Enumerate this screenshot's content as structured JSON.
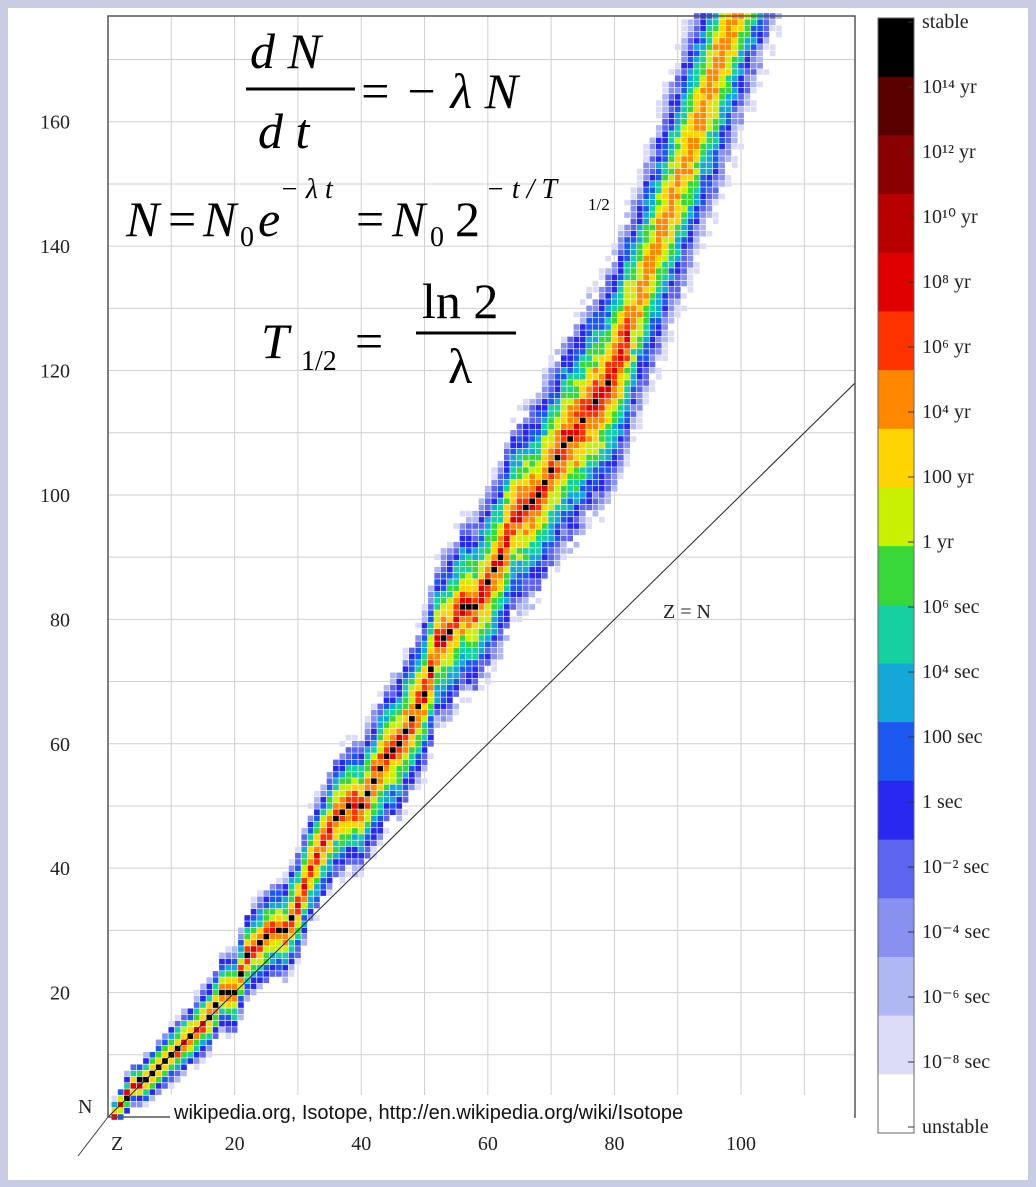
{
  "chart_data": {
    "type": "heatmap",
    "title": "",
    "xlabel": "Z",
    "ylabel": "N",
    "xlim": [
      0,
      118
    ],
    "ylim": [
      0,
      177
    ],
    "x_ticks": [
      20,
      40,
      60,
      80,
      100
    ],
    "y_ticks": [
      20,
      40,
      60,
      80,
      100,
      120,
      140,
      160
    ],
    "grid": true,
    "reference_line": {
      "label": "Z = N",
      "slope": 1
    },
    "colorbar": {
      "labels_top_to_bottom": [
        "stable",
        "10¹⁴ yr",
        "10¹² yr",
        "10¹⁰ yr",
        "10⁸ yr",
        "10⁶ yr",
        "10⁴ yr",
        "100 yr",
        "1 yr",
        "10⁶ sec",
        "10⁴ sec",
        "100 sec",
        "1 sec",
        "10⁻² sec",
        "10⁻⁴ sec",
        "10⁻⁶ sec",
        "10⁻⁸ sec",
        "unstable"
      ],
      "colors_top_to_bottom": [
        "#000000",
        "#5a0000",
        "#8a0000",
        "#b80000",
        "#e00000",
        "#ff3300",
        "#ff8800",
        "#ffd400",
        "#c8f000",
        "#38d838",
        "#16d0a0",
        "#14a8d8",
        "#1c58f0",
        "#2828f0",
        "#5c64f0",
        "#8890f0",
        "#b0b8f4",
        "#dcdcf8",
        "#ffffff"
      ]
    },
    "stable_band_Z_N": [
      [
        1,
        0
      ],
      [
        2,
        2
      ],
      [
        4,
        5
      ],
      [
        6,
        6
      ],
      [
        8,
        8
      ],
      [
        10,
        10
      ],
      [
        12,
        12
      ],
      [
        14,
        14
      ],
      [
        16,
        16
      ],
      [
        18,
        20
      ],
      [
        20,
        20
      ],
      [
        22,
        26
      ],
      [
        24,
        28
      ],
      [
        26,
        30
      ],
      [
        28,
        30
      ],
      [
        30,
        34
      ],
      [
        32,
        40
      ],
      [
        34,
        44
      ],
      [
        36,
        48
      ],
      [
        38,
        50
      ],
      [
        40,
        50
      ],
      [
        42,
        54
      ],
      [
        44,
        58
      ],
      [
        46,
        60
      ],
      [
        48,
        64
      ],
      [
        50,
        68
      ],
      [
        52,
        76
      ],
      [
        54,
        78
      ],
      [
        56,
        82
      ],
      [
        58,
        82
      ],
      [
        60,
        86
      ],
      [
        62,
        90
      ],
      [
        64,
        96
      ],
      [
        66,
        98
      ],
      [
        68,
        100
      ],
      [
        70,
        104
      ],
      [
        72,
        108
      ],
      [
        74,
        110
      ],
      [
        76,
        114
      ],
      [
        78,
        116
      ],
      [
        80,
        120
      ],
      [
        82,
        126
      ]
    ]
  },
  "equations": {
    "eq1_lhs_num": "d N",
    "eq1_lhs_den": "d t",
    "eq1_rhs": "= − λ N",
    "eq2_N": "N",
    "eq2_eq1": "=",
    "eq2_N0a": "N",
    "eq2_sub0a": "0",
    "eq2_e": "e",
    "eq2_exp1": "− λ t",
    "eq2_eq2": "=",
    "eq2_N0b": "N",
    "eq2_sub0b": "0",
    "eq2_two": "2",
    "eq2_exp2": "− t / T",
    "eq2_exp2_sub": "1/2",
    "eq3_T": "T",
    "eq3_sub": "1/2",
    "eq3_eq": "=",
    "eq3_num": "ln 2",
    "eq3_den": "λ"
  },
  "credit": "wikipedia.org, Isotope, http://en.wikipedia.org/wiki/Isotope"
}
